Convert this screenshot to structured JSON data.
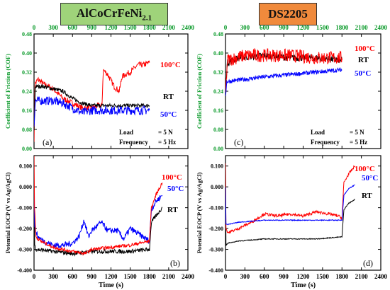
{
  "titles": [
    "AlCoCrFeNi2.1",
    "DS2205"
  ],
  "chart_data": [
    {
      "id": "cof-a",
      "type": "line",
      "panel_label": "(a)",
      "ylabel": "Coefficient of Friction (COF)",
      "xlim": [
        0,
        2400
      ],
      "ylim": [
        0,
        0.48
      ],
      "xticks": [
        0,
        300,
        600,
        900,
        1200,
        1500,
        1800,
        2100,
        2400
      ],
      "yticks": [
        "0.00",
        "0.08",
        "0.16",
        "0.24",
        "0.32",
        "0.40",
        "0.48"
      ],
      "x_tick_position": "top",
      "grid": false,
      "annotations": [
        {
          "text": "100°C",
          "color": "#ff0000"
        },
        {
          "text": "RT",
          "color": "#000000"
        },
        {
          "text": "50°C",
          "color": "#0000ff"
        },
        {
          "text": "Load",
          "color": "#000000"
        },
        {
          "text": "= 5 N",
          "color": "#000000"
        },
        {
          "text": "Frequency",
          "color": "#000000"
        },
        {
          "text": "= 5 Hz",
          "color": "#000000"
        }
      ],
      "series": [
        {
          "name": "100°C",
          "color": "#ff0000",
          "noise": 0.012,
          "points": [
            [
              0,
              0.04
            ],
            [
              15,
              0.27
            ],
            [
              60,
              0.29
            ],
            [
              150,
              0.27
            ],
            [
              300,
              0.25
            ],
            [
              450,
              0.21
            ],
            [
              600,
              0.19
            ],
            [
              750,
              0.17
            ],
            [
              900,
              0.17
            ],
            [
              1000,
              0.18
            ],
            [
              1060,
              0.18
            ],
            [
              1080,
              0.33
            ],
            [
              1150,
              0.31
            ],
            [
              1250,
              0.26
            ],
            [
              1330,
              0.24
            ],
            [
              1370,
              0.3
            ],
            [
              1420,
              0.31
            ],
            [
              1500,
              0.32
            ],
            [
              1620,
              0.35
            ],
            [
              1700,
              0.35
            ],
            [
              1800,
              0.36
            ]
          ]
        },
        {
          "name": "RT",
          "color": "#000000",
          "noise": 0.008,
          "points": [
            [
              0,
              0.08
            ],
            [
              20,
              0.26
            ],
            [
              150,
              0.26
            ],
            [
              300,
              0.25
            ],
            [
              450,
              0.24
            ],
            [
              600,
              0.21
            ],
            [
              750,
              0.19
            ],
            [
              900,
              0.18
            ],
            [
              1200,
              0.18
            ],
            [
              1500,
              0.18
            ],
            [
              1800,
              0.18
            ]
          ]
        },
        {
          "name": "50°C",
          "color": "#0000ff",
          "noise": 0.018,
          "points": [
            [
              0,
              0.1
            ],
            [
              20,
              0.2
            ],
            [
              150,
              0.2
            ],
            [
              300,
              0.2
            ],
            [
              450,
              0.19
            ],
            [
              600,
              0.17
            ],
            [
              750,
              0.15
            ],
            [
              900,
              0.16
            ],
            [
              1200,
              0.16
            ],
            [
              1500,
              0.16
            ],
            [
              1800,
              0.16
            ]
          ]
        }
      ]
    },
    {
      "id": "cof-c",
      "type": "line",
      "panel_label": "(c)",
      "ylabel": "Coefficient of Friction (COF)",
      "xlim": [
        0,
        2400
      ],
      "ylim": [
        0,
        0.48
      ],
      "xticks": [
        0,
        300,
        600,
        900,
        1200,
        1500,
        1800,
        2100,
        2400
      ],
      "yticks": [
        "0.00",
        "0.08",
        "0.16",
        "0.24",
        "0.32",
        "0.40",
        "0.48"
      ],
      "x_tick_position": "top",
      "grid": false,
      "annotations": [
        {
          "text": "100°C",
          "color": "#ff0000"
        },
        {
          "text": "RT",
          "color": "#000000"
        },
        {
          "text": "50°C",
          "color": "#0000ff"
        },
        {
          "text": "Load",
          "color": "#000000"
        },
        {
          "text": "= 5 N",
          "color": "#000000"
        },
        {
          "text": "Frequency",
          "color": "#000000"
        },
        {
          "text": "= 5 Hz",
          "color": "#000000"
        }
      ],
      "series": [
        {
          "name": "RT",
          "color": "#000000",
          "noise": 0.014,
          "points": [
            [
              0,
              0.26
            ],
            [
              30,
              0.36
            ],
            [
              200,
              0.38
            ],
            [
              600,
              0.39
            ],
            [
              1000,
              0.38
            ],
            [
              1400,
              0.38
            ],
            [
              1800,
              0.37
            ]
          ]
        },
        {
          "name": "100°C",
          "color": "#ff0000",
          "noise": 0.028,
          "points": [
            [
              0,
              0.22
            ],
            [
              30,
              0.37
            ],
            [
              300,
              0.39
            ],
            [
              600,
              0.39
            ],
            [
              1000,
              0.39
            ],
            [
              1400,
              0.38
            ],
            [
              1800,
              0.38
            ]
          ]
        },
        {
          "name": "50°C",
          "color": "#0000ff",
          "noise": 0.009,
          "points": [
            [
              0,
              0.22
            ],
            [
              20,
              0.28
            ],
            [
              300,
              0.29
            ],
            [
              600,
              0.3
            ],
            [
              1000,
              0.31
            ],
            [
              1400,
              0.32
            ],
            [
              1800,
              0.33
            ]
          ]
        }
      ]
    },
    {
      "id": "ocp-b",
      "type": "line",
      "panel_label": "(b)",
      "ylabel": "Potential EOCP (V vs Ag/AgCl)",
      "xlabel": "Time (s)",
      "xlim": [
        0,
        2400
      ],
      "ylim": [
        -0.4,
        0.15
      ],
      "xticks": [
        0,
        300,
        600,
        900,
        1200,
        1500,
        1800,
        2100,
        2400
      ],
      "yticks": [
        "-0.400",
        "-0.300",
        "-0.200",
        "-0.100",
        "0.000",
        "0.100"
      ],
      "x_tick_position": "bottom",
      "grid": false,
      "annotations": [
        {
          "text": "100°C",
          "color": "#ff0000"
        },
        {
          "text": "50°C",
          "color": "#0000ff"
        },
        {
          "text": "RT",
          "color": "#000000"
        }
      ],
      "series": [
        {
          "name": "RT",
          "color": "#000000",
          "noise": 0.01,
          "points": [
            [
              0,
              0.0
            ],
            [
              10,
              -0.28
            ],
            [
              30,
              -0.3
            ],
            [
              300,
              -0.31
            ],
            [
              600,
              -0.32
            ],
            [
              900,
              -0.31
            ],
            [
              1200,
              -0.31
            ],
            [
              1500,
              -0.31
            ],
            [
              1800,
              -0.3
            ],
            [
              1830,
              -0.17
            ],
            [
              1900,
              -0.14
            ],
            [
              2000,
              -0.1
            ]
          ]
        },
        {
          "name": "50°C",
          "color": "#0000ff",
          "noise": 0.014,
          "points": [
            [
              0,
              0.02
            ],
            [
              10,
              -0.2
            ],
            [
              60,
              -0.24
            ],
            [
              150,
              -0.26
            ],
            [
              300,
              -0.28
            ],
            [
              450,
              -0.28
            ],
            [
              600,
              -0.27
            ],
            [
              700,
              -0.24
            ],
            [
              780,
              -0.16
            ],
            [
              850,
              -0.24
            ],
            [
              900,
              -0.21
            ],
            [
              1050,
              -0.17
            ],
            [
              1150,
              -0.21
            ],
            [
              1300,
              -0.21
            ],
            [
              1400,
              -0.25
            ],
            [
              1500,
              -0.2
            ],
            [
              1600,
              -0.22
            ],
            [
              1700,
              -0.24
            ],
            [
              1800,
              -0.26
            ],
            [
              1830,
              -0.11
            ],
            [
              1900,
              -0.07
            ],
            [
              2000,
              -0.04
            ]
          ]
        },
        {
          "name": "100°C",
          "color": "#ff0000",
          "noise": 0.008,
          "points": [
            [
              0,
              0.15
            ],
            [
              8,
              -0.1
            ],
            [
              30,
              -0.24
            ],
            [
              100,
              -0.26
            ],
            [
              300,
              -0.29
            ],
            [
              600,
              -0.31
            ],
            [
              800,
              -0.32
            ],
            [
              900,
              -0.3
            ],
            [
              1200,
              -0.29
            ],
            [
              1500,
              -0.28
            ],
            [
              1800,
              -0.26
            ],
            [
              1830,
              -0.1
            ],
            [
              1900,
              -0.04
            ],
            [
              2000,
              0.02
            ]
          ]
        }
      ]
    },
    {
      "id": "ocp-d",
      "type": "line",
      "panel_label": "(d)",
      "ylabel": "Potential EOCP (V vs Ag/AgCl)",
      "xlabel": "Time (s)",
      "xlim": [
        0,
        2400
      ],
      "ylim": [
        -0.4,
        0.15
      ],
      "xticks": [
        0,
        300,
        600,
        900,
        1200,
        1500,
        1800,
        2100,
        2400
      ],
      "yticks": [
        "-0.400",
        "-0.300",
        "-0.200",
        "-0.100",
        "0.000",
        "0.100"
      ],
      "x_tick_position": "bottom",
      "grid": false,
      "annotations": [
        {
          "text": "100°C",
          "color": "#ff0000"
        },
        {
          "text": "50°C",
          "color": "#0000ff"
        },
        {
          "text": "RT",
          "color": "#000000"
        }
      ],
      "series": [
        {
          "name": "RT",
          "color": "#000000",
          "noise": 0.002,
          "points": [
            [
              0,
              0.1
            ],
            [
              8,
              -0.28
            ],
            [
              40,
              -0.27
            ],
            [
              200,
              -0.26
            ],
            [
              600,
              -0.25
            ],
            [
              1000,
              -0.25
            ],
            [
              1400,
              -0.25
            ],
            [
              1800,
              -0.24
            ],
            [
              1830,
              -0.11
            ],
            [
              1900,
              -0.08
            ],
            [
              2000,
              -0.06
            ]
          ]
        },
        {
          "name": "100°C",
          "color": "#ff0000",
          "noise": 0.007,
          "points": [
            [
              0,
              0.12
            ],
            [
              8,
              -0.2
            ],
            [
              40,
              -0.22
            ],
            [
              200,
              -0.2
            ],
            [
              400,
              -0.17
            ],
            [
              600,
              -0.13
            ],
            [
              800,
              -0.14
            ],
            [
              1000,
              -0.13
            ],
            [
              1200,
              -0.14
            ],
            [
              1400,
              -0.12
            ],
            [
              1600,
              -0.13
            ],
            [
              1750,
              -0.14
            ],
            [
              1800,
              -0.15
            ],
            [
              1830,
              0.02
            ],
            [
              1900,
              0.06
            ],
            [
              2000,
              0.1
            ]
          ]
        },
        {
          "name": "50°C",
          "color": "#0000ff",
          "noise": 0.002,
          "points": [
            [
              0,
              0.0
            ],
            [
              8,
              -0.18
            ],
            [
              40,
              -0.18
            ],
            [
              200,
              -0.17
            ],
            [
              600,
              -0.16
            ],
            [
              1000,
              -0.16
            ],
            [
              1400,
              -0.16
            ],
            [
              1800,
              -0.16
            ],
            [
              1830,
              -0.04
            ],
            [
              1900,
              -0.01
            ],
            [
              2000,
              0.01
            ]
          ]
        }
      ]
    }
  ]
}
